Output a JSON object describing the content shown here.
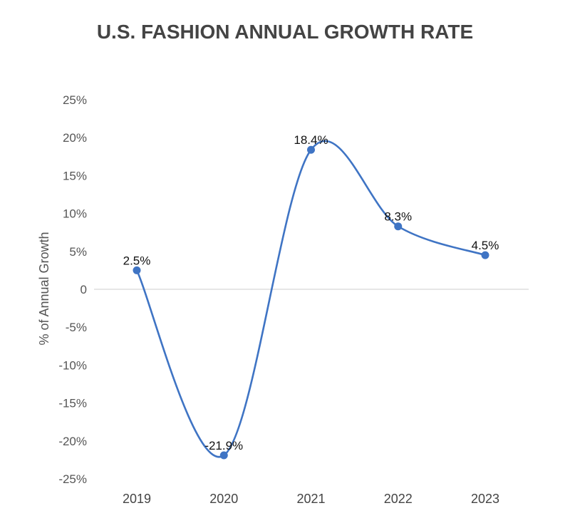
{
  "chart_data": {
    "type": "line",
    "title": "U.S. FASHION ANNUAL GROWTH RATE",
    "xlabel": "",
    "ylabel": "% of Annual Growth",
    "categories": [
      "2019",
      "2020",
      "2021",
      "2022",
      "2023"
    ],
    "series": [
      {
        "name": "% of Annual Growth",
        "values": [
          2.5,
          -21.9,
          18.4,
          8.3,
          4.5
        ],
        "labels": [
          "2.5%",
          "-21.9%",
          "18.4%",
          "8.3%",
          "4.5%"
        ],
        "color": "#3f74c4"
      }
    ],
    "ylim": [
      -25,
      25
    ],
    "yticks": [
      25,
      20,
      15,
      10,
      5,
      0,
      -5,
      -10,
      -15,
      -20,
      -25
    ],
    "ytick_labels": [
      "25%",
      "20%",
      "15%",
      "10%",
      "5%",
      "0",
      "-5%",
      "-10%",
      "-15%",
      "-20%",
      "-25%"
    ],
    "grid": false,
    "legend": "none"
  }
}
